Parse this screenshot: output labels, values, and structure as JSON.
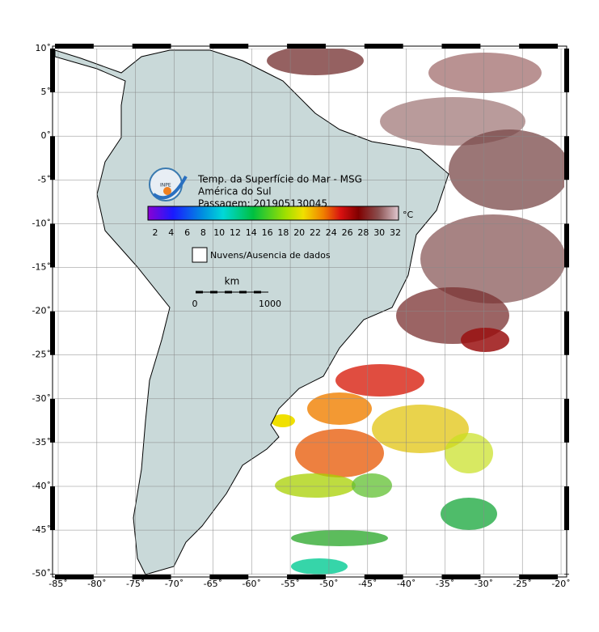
{
  "map": {
    "title": "Temp. da Superfície do Mar - MSG",
    "region": "América do Sul",
    "pass": "Passagem: 201905130045",
    "colorbar": {
      "labels": [
        "2",
        "4",
        "6",
        "8",
        "10",
        "12",
        "14",
        "16",
        "18",
        "20",
        "22",
        "24",
        "26",
        "28",
        "30",
        "32"
      ],
      "unit": "°C"
    },
    "legend": "Nuvens/Ausencia de dados",
    "scale": {
      "unit": "km",
      "start": "0",
      "end": "1000"
    },
    "logo": "INPE",
    "longitude_labels": [
      "-85˚",
      "-80˚",
      "-75˚",
      "-70˚",
      "-65˚",
      "-60˚",
      "-55˚",
      "-50˚",
      "-45˚",
      "-40˚",
      "-35˚",
      "-30˚",
      "-25˚",
      "-20˚"
    ],
    "latitude_labels": [
      "10˚",
      "5˚",
      "0˚",
      "-5˚",
      "-10˚",
      "-15˚",
      "-20˚",
      "-25˚",
      "-30˚",
      "-35˚",
      "-40˚",
      "-45˚",
      "-50˚"
    ]
  }
}
